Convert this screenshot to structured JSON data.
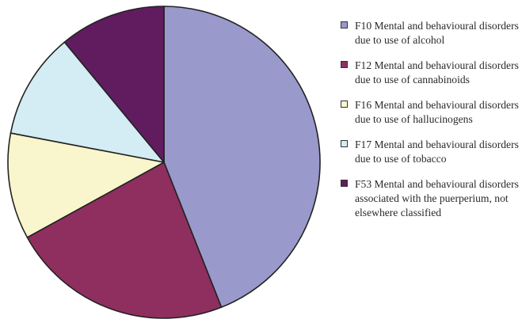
{
  "chart_data": {
    "type": "pie",
    "title": "",
    "start_angle_deg": 0,
    "direction": "clockwise",
    "slices": [
      {
        "name": "F10 Mental and behavioural disorders due to use of alcohol",
        "value": 44,
        "color": "#9999cc"
      },
      {
        "name": "F12 Mental and behavioural disorders due to use of cannabinoids",
        "value": 23,
        "color": "#8f2f5f"
      },
      {
        "name": "F16 Mental and behavioural disorders due to use of hallucinogens",
        "value": 11,
        "color": "#f9f5cc"
      },
      {
        "name": "F17 Mental and behavioural disorders due to use of tobacco",
        "value": 11,
        "color": "#d4ecf3"
      },
      {
        "name": "F53 Mental and behavioural disorders associated with the puerperium, not elsewhere classified",
        "value": 11,
        "color": "#611c5f"
      }
    ],
    "legend_position": "right",
    "edge_color": "#222222"
  },
  "legend": [
    {
      "label": "F10 Mental and behavioural disorders due to use of alcohol",
      "color": "#9999cc"
    },
    {
      "label": "F12 Mental and behavioural disorders due to use of cannabinoids",
      "color": "#8f2f5f"
    },
    {
      "label": "F16 Mental and behavioural disorders due to use of hallucinogens",
      "color": "#f9f5cc"
    },
    {
      "label": "F17 Mental and behavioural disorders due to use of tobacco",
      "color": "#d4ecf3"
    },
    {
      "label": "F53 Mental and behavioural disorders associated with the puerperium, not elsewhere classified",
      "color": "#611c5f"
    }
  ]
}
